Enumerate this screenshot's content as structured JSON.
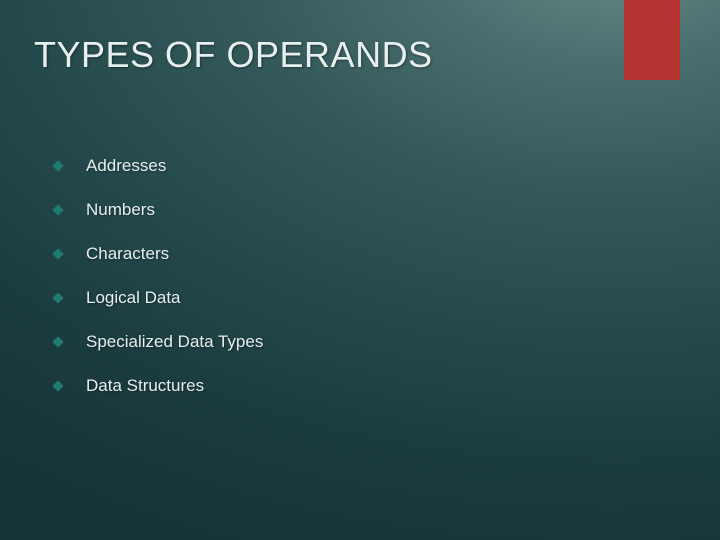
{
  "slide": {
    "title": "TYPES OF OPERANDS",
    "title_color": "#e8efef",
    "title_fontsize": 36,
    "accent_bar_color": "#b43331",
    "background_gradient": {
      "from": "#6b8a89",
      "to": "#173437"
    },
    "bullet_marker_color": "#1f7a71",
    "bullet_text_color": "#e6eeee",
    "bullet_fontsize": 17,
    "bullets": [
      {
        "label": "Addresses"
      },
      {
        "label": "Numbers"
      },
      {
        "label": "Characters"
      },
      {
        "label": "Logical Data"
      },
      {
        "label": "Specialized Data Types"
      },
      {
        "label": "Data Structures"
      }
    ]
  }
}
